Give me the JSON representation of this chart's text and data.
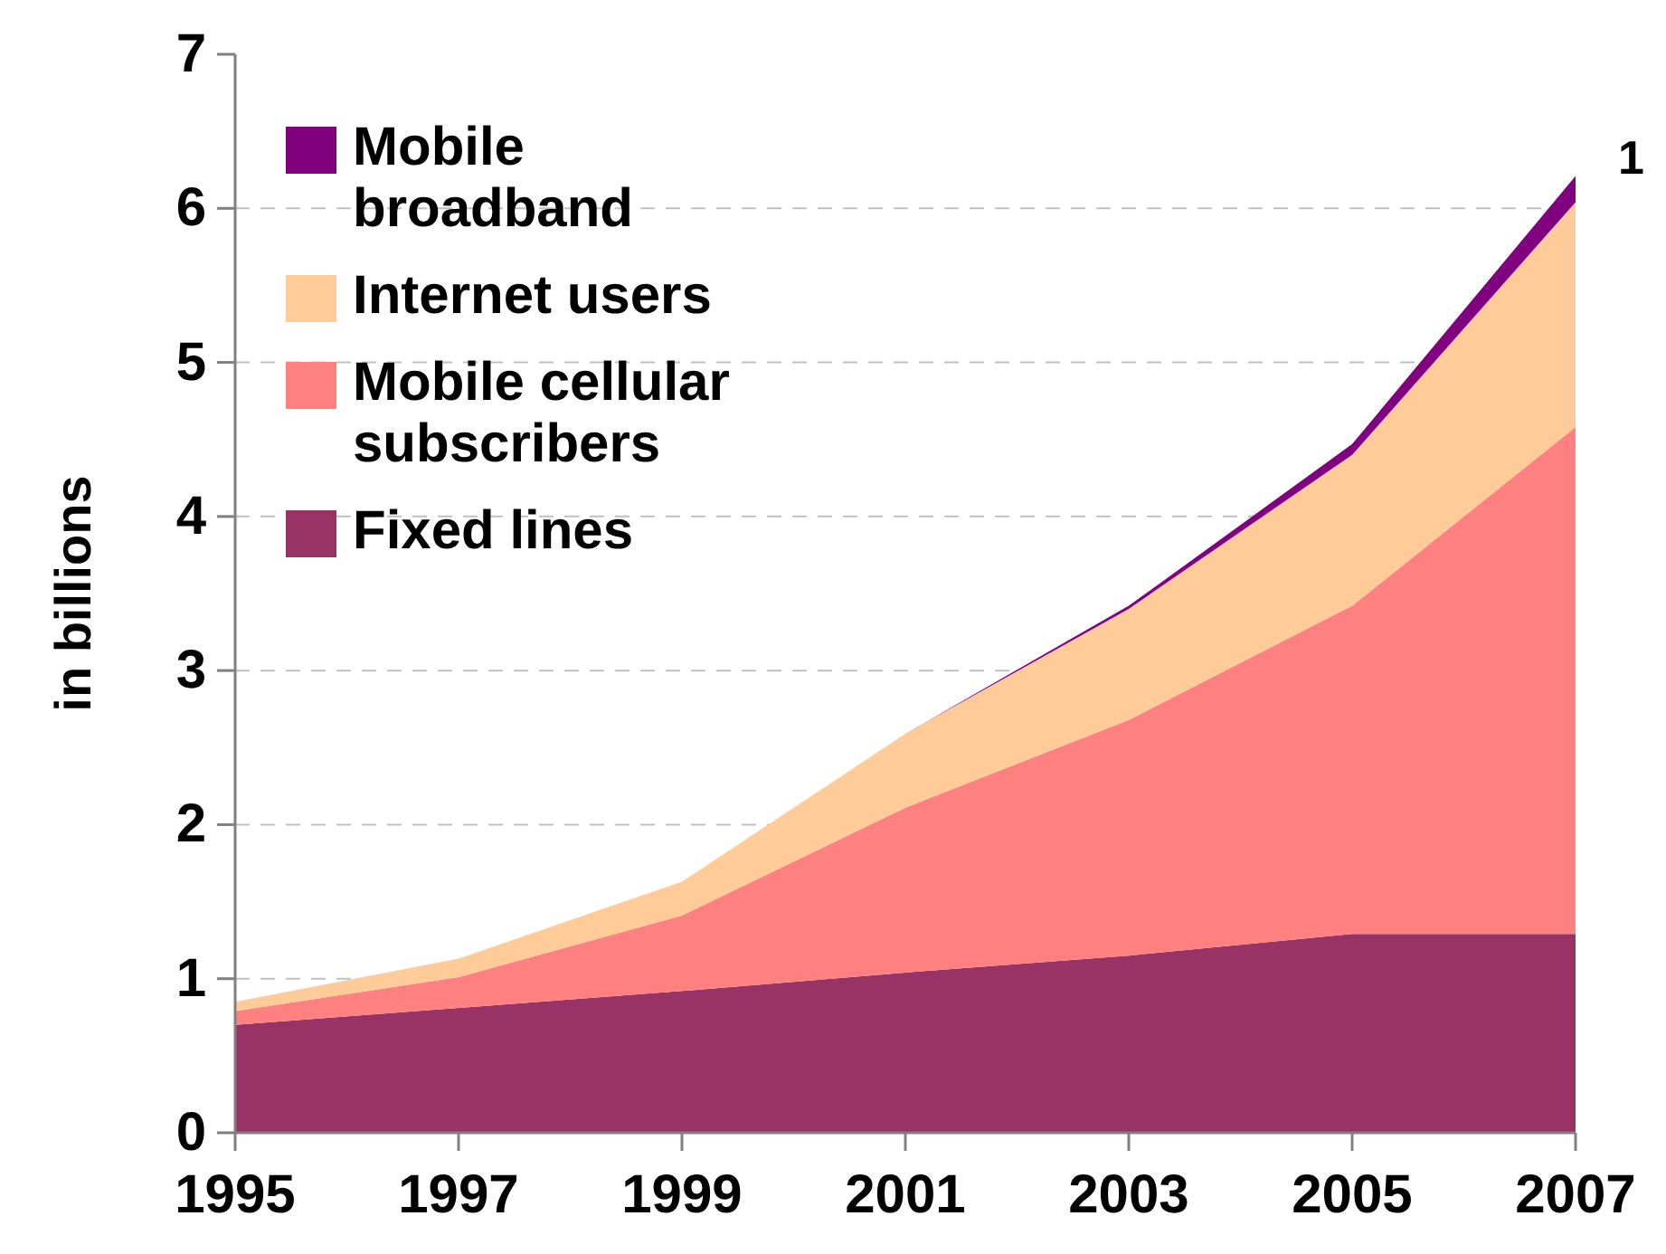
{
  "chart_data": {
    "type": "area",
    "stacked": true,
    "ylabel": "in billions",
    "x": [
      1995,
      1997,
      1999,
      2001,
      2003,
      2005,
      2007
    ],
    "xlim": [
      1995,
      2007
    ],
    "xticks": [
      1995,
      1997,
      1999,
      2001,
      2003,
      2005,
      2007
    ],
    "ylim": [
      0,
      7
    ],
    "yticks": [
      0,
      1,
      2,
      3,
      4,
      5,
      6,
      7
    ],
    "grid": "y",
    "legend": "top left",
    "annotations": [
      "1"
    ],
    "series": [
      {
        "name": "Fixed lines",
        "color": "#993366",
        "values": [
          0.7,
          0.81,
          0.92,
          1.04,
          1.15,
          1.29,
          1.29
        ]
      },
      {
        "name": "Mobile cellular subscribers",
        "color": "#ff8080",
        "values": [
          0.09,
          0.2,
          0.49,
          1.07,
          1.53,
          2.13,
          3.29
        ]
      },
      {
        "name": "Internet users",
        "color": "#ffcc99",
        "values": [
          0.06,
          0.12,
          0.22,
          0.48,
          0.72,
          0.98,
          1.46
        ]
      },
      {
        "name": "Mobile broadband",
        "color": "#800080",
        "values": [
          0,
          0,
          0,
          0,
          0.02,
          0.07,
          0.17
        ]
      }
    ]
  }
}
